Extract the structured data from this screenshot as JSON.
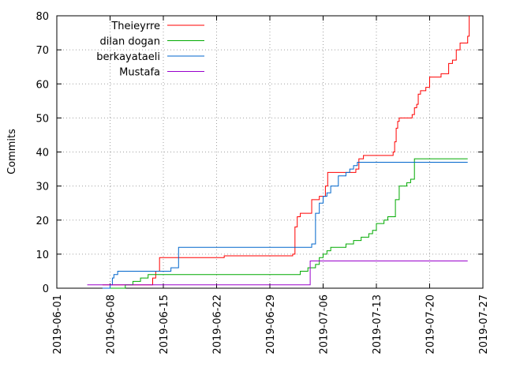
{
  "chart_data": {
    "type": "line",
    "title": "",
    "xlabel": "",
    "ylabel": "Commits",
    "ylim": [
      0,
      80
    ],
    "xlim": [
      "2019-06-01",
      "2019-07-27"
    ],
    "grid": true,
    "legend_position": "top-left",
    "y_ticks": [
      0,
      10,
      20,
      30,
      40,
      50,
      60,
      70,
      80
    ],
    "x_ticks": [
      "2019-06-01",
      "2019-06-08",
      "2019-06-15",
      "2019-06-22",
      "2019-06-29",
      "2019-07-06",
      "2019-07-13",
      "2019-07-20",
      "2019-07-27"
    ],
    "series": [
      {
        "name": "Theieyrre",
        "color": "#ff0000",
        "x": [
          "2019-06-07",
          "2019-06-13",
          "2019-06-13.6",
          "2019-06-14",
          "2019-06-14.5",
          "2019-06-18",
          "2019-06-18.5",
          "2019-06-22",
          "2019-06-23",
          "2019-06-28",
          "2019-07-02",
          "2019-07-02.3",
          "2019-07-02.6",
          "2019-07-03",
          "2019-07-04",
          "2019-07-04.5",
          "2019-07-05.5",
          "2019-07-06",
          "2019-07-06.3",
          "2019-07-06.6",
          "2019-07-10",
          "2019-07-10.3",
          "2019-07-10.7",
          "2019-07-11",
          "2019-07-11.3",
          "2019-07-15",
          "2019-07-15.2",
          "2019-07-15.4",
          "2019-07-15.6",
          "2019-07-15.8",
          "2019-07-16",
          "2019-07-17.5",
          "2019-07-17.7",
          "2019-07-18",
          "2019-07-18.3",
          "2019-07-18.5",
          "2019-07-18.8",
          "2019-07-19.5",
          "2019-07-20",
          "2019-07-21",
          "2019-07-21.5",
          "2019-07-22.5",
          "2019-07-23",
          "2019-07-23.5",
          "2019-07-24",
          "2019-07-25",
          "2019-07-25.2"
        ],
        "y": [
          1,
          1,
          3,
          5,
          9,
          9,
          9,
          9,
          9.5,
          9.5,
          10,
          18,
          21,
          22,
          22,
          26,
          27,
          27,
          30,
          34,
          34,
          35,
          38,
          38,
          39,
          39,
          40,
          43,
          47,
          49,
          50,
          50,
          51,
          53,
          54,
          57,
          58,
          59,
          62,
          62,
          63,
          66,
          67,
          70,
          72,
          74,
          80
        ]
      },
      {
        "name": "dilan dogan",
        "color": "#00aa00",
        "x": [
          "2019-06-08",
          "2019-06-10",
          "2019-06-11",
          "2019-06-12",
          "2019-06-13",
          "2019-06-14",
          "2019-07-01",
          "2019-07-02",
          "2019-07-03",
          "2019-07-04",
          "2019-07-05",
          "2019-07-05.5",
          "2019-07-06",
          "2019-07-06.5",
          "2019-07-07",
          "2019-07-08",
          "2019-07-09",
          "2019-07-10",
          "2019-07-11",
          "2019-07-12",
          "2019-07-12.5",
          "2019-07-13",
          "2019-07-14",
          "2019-07-14.5",
          "2019-07-15",
          "2019-07-15.5",
          "2019-07-16",
          "2019-07-17",
          "2019-07-17.5",
          "2019-07-18",
          "2019-07-25"
        ],
        "y": [
          0,
          1,
          2,
          3,
          4,
          4,
          4,
          4,
          5,
          6,
          7,
          9,
          10,
          11,
          12,
          12,
          13,
          14,
          15,
          16,
          17,
          19,
          20,
          21,
          21,
          26,
          30,
          31,
          32,
          38,
          38
        ]
      },
      {
        "name": "berkayataeli",
        "color": "#0066cc",
        "x": [
          "2019-06-07",
          "2019-06-08",
          "2019-06-08.3",
          "2019-06-08.5",
          "2019-06-09",
          "2019-06-14",
          "2019-06-16",
          "2019-06-17",
          "2019-07-04",
          "2019-07-04.5",
          "2019-07-05",
          "2019-07-05.5",
          "2019-07-06",
          "2019-07-06.5",
          "2019-07-07",
          "2019-07-08",
          "2019-07-09",
          "2019-07-09.5",
          "2019-07-10",
          "2019-07-10.5",
          "2019-07-11",
          "2019-07-25"
        ],
        "y": [
          0,
          1,
          3,
          4,
          5,
          5,
          6,
          12,
          12,
          13,
          22,
          25,
          27,
          28,
          30,
          33,
          34,
          35,
          36,
          37,
          37,
          37
        ]
      },
      {
        "name": "Mustafa",
        "color": "#9900cc",
        "x": [
          "2019-06-05",
          "2019-07-04",
          "2019-07-04.3",
          "2019-07-25"
        ],
        "y": [
          1,
          1,
          8,
          8
        ]
      }
    ]
  }
}
